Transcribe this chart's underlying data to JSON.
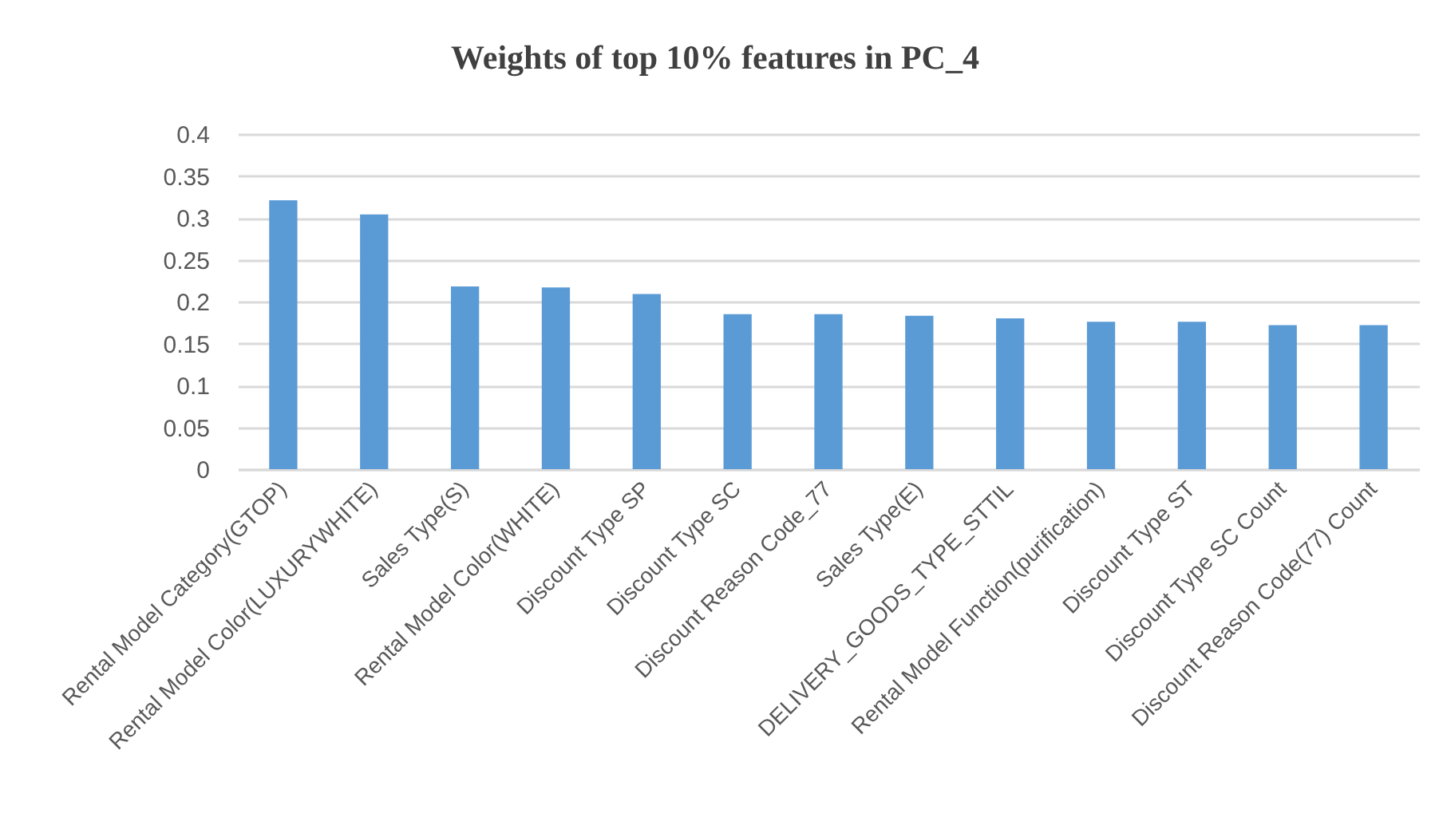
{
  "chart_data": {
    "type": "bar",
    "title": "Weights of top 10% features in PC_4",
    "categories": [
      "Rental Model Category(GTOP)",
      "Rental Model Color(LUXURYWHITE)",
      "Sales Type(S)",
      "Rental Model Color(WHITE)",
      "Discount Type SP",
      "Discount Type SC",
      "Discount Reason Code_77",
      "Sales Type(E)",
      "DELIVERY_GOODS_TYPE_STTIL",
      "Rental Model Function(purification)",
      "Discount Type ST",
      "Discount Type SC Count",
      "Discount Reason Code(77) Count"
    ],
    "values": [
      0.321,
      0.304,
      0.218,
      0.217,
      0.209,
      0.185,
      0.185,
      0.183,
      0.18,
      0.176,
      0.176,
      0.172,
      0.172
    ],
    "color": "#5b9bd5",
    "ylim": [
      0,
      0.4
    ],
    "yticks": [
      0,
      0.05,
      0.1,
      0.15,
      0.2,
      0.25,
      0.3,
      0.35,
      0.4
    ],
    "grid": "y"
  }
}
